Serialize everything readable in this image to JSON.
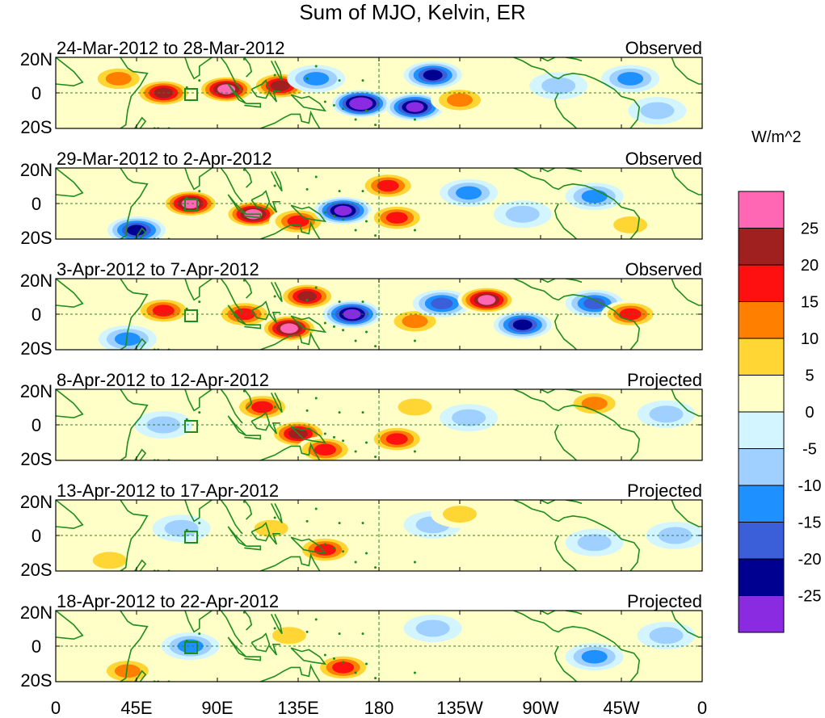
{
  "figure": {
    "title": "Sum of MJO, Kelvin, ER",
    "units": "W/m^2",
    "lon_tick_labels": [
      "0",
      "45E",
      "90E",
      "135E",
      "180",
      "135W",
      "90W",
      "45W",
      "0"
    ],
    "lat_tick_labels": [
      "20N",
      "0",
      "20S"
    ]
  },
  "panels": [
    {
      "date_range": "24-Mar-2012 to 28-Mar-2012",
      "status": "Observed"
    },
    {
      "date_range": "29-Mar-2012 to 2-Apr-2012",
      "status": "Observed"
    },
    {
      "date_range": "3-Apr-2012 to 7-Apr-2012",
      "status": "Observed"
    },
    {
      "date_range": "8-Apr-2012 to 12-Apr-2012",
      "status": "Projected"
    },
    {
      "date_range": "13-Apr-2012 to 17-Apr-2012",
      "status": "Projected"
    },
    {
      "date_range": "18-Apr-2012 to 22-Apr-2012",
      "status": "Projected"
    }
  ],
  "colorbar": {
    "tick_labels": [
      "25",
      "20",
      "15",
      "10",
      "5",
      "0",
      "-5",
      "-10",
      "-15",
      "-20",
      "-25"
    ],
    "colors": [
      "#ff66b3",
      "#a02020",
      "#ff1010",
      "#ff7f00",
      "#ffd633",
      "#ffffc8",
      "#d2f5ff",
      "#9fd0ff",
      "#1e90ff",
      "#3a5fd8",
      "#000090",
      "#8a2be2"
    ]
  },
  "chart_data": {
    "type": "heatmap",
    "title": "Sum of MJO, Kelvin, ER",
    "units": "W/m^2",
    "x_range": [
      0,
      360
    ],
    "y_range": [
      -20,
      20
    ],
    "x_ticks": [
      0,
      45,
      90,
      135,
      180,
      225,
      270,
      315,
      360
    ],
    "y_ticks": [
      20,
      0,
      -20
    ],
    "color_levels": [
      -25,
      -20,
      -15,
      -10,
      -5,
      0,
      5,
      10,
      15,
      20,
      25
    ],
    "panels": [
      {
        "label": "24-Mar-2012 to 28-Mar-2012",
        "kind": "Observed",
        "blobs": [
          {
            "lon": 60,
            "lat": 0,
            "value": 22
          },
          {
            "lon": 95,
            "lat": 2,
            "value": 30
          },
          {
            "lon": 125,
            "lat": 4,
            "value": 24
          },
          {
            "lon": 35,
            "lat": 8,
            "value": 12
          },
          {
            "lon": 145,
            "lat": 8,
            "value": -12
          },
          {
            "lon": 170,
            "lat": -6,
            "value": -32
          },
          {
            "lon": 200,
            "lat": -8,
            "value": -30
          },
          {
            "lon": 225,
            "lat": -4,
            "value": 14
          },
          {
            "lon": 210,
            "lat": 10,
            "value": -22
          },
          {
            "lon": 280,
            "lat": 4,
            "value": -8
          },
          {
            "lon": 320,
            "lat": 8,
            "value": -12
          },
          {
            "lon": 335,
            "lat": -10,
            "value": -10
          }
        ]
      },
      {
        "label": "29-Mar-2012 to 2-Apr-2012",
        "kind": "Observed",
        "blobs": [
          {
            "lon": 75,
            "lat": 0,
            "value": 28
          },
          {
            "lon": 110,
            "lat": -6,
            "value": 30
          },
          {
            "lon": 135,
            "lat": -10,
            "value": 20
          },
          {
            "lon": 160,
            "lat": -4,
            "value": -30
          },
          {
            "lon": 185,
            "lat": 10,
            "value": 20
          },
          {
            "lon": 190,
            "lat": -8,
            "value": 16
          },
          {
            "lon": 230,
            "lat": 6,
            "value": -14
          },
          {
            "lon": 260,
            "lat": -6,
            "value": -10
          },
          {
            "lon": 300,
            "lat": 4,
            "value": -12
          },
          {
            "lon": 45,
            "lat": -15,
            "value": -24
          },
          {
            "lon": 320,
            "lat": -12,
            "value": 10
          }
        ]
      },
      {
        "label": "3-Apr-2012 to 7-Apr-2012",
        "kind": "Observed",
        "blobs": [
          {
            "lon": 60,
            "lat": 2,
            "value": 18
          },
          {
            "lon": 105,
            "lat": 0,
            "value": 20
          },
          {
            "lon": 130,
            "lat": -8,
            "value": 30
          },
          {
            "lon": 140,
            "lat": 10,
            "value": 22
          },
          {
            "lon": 165,
            "lat": 0,
            "value": -26
          },
          {
            "lon": 200,
            "lat": -4,
            "value": 14
          },
          {
            "lon": 215,
            "lat": 6,
            "value": -18
          },
          {
            "lon": 240,
            "lat": 8,
            "value": 26
          },
          {
            "lon": 260,
            "lat": -6,
            "value": -22
          },
          {
            "lon": 300,
            "lat": 6,
            "value": -16
          },
          {
            "lon": 320,
            "lat": 0,
            "value": 18
          },
          {
            "lon": 40,
            "lat": -14,
            "value": -14
          }
        ]
      },
      {
        "label": "8-Apr-2012 to 12-Apr-2012",
        "kind": "Projected",
        "blobs": [
          {
            "lon": 115,
            "lat": 10,
            "value": 16
          },
          {
            "lon": 135,
            "lat": -5,
            "value": 22
          },
          {
            "lon": 150,
            "lat": -14,
            "value": 20
          },
          {
            "lon": 190,
            "lat": -8,
            "value": 18
          },
          {
            "lon": 60,
            "lat": 0,
            "value": -6
          },
          {
            "lon": 230,
            "lat": 4,
            "value": -8
          },
          {
            "lon": 300,
            "lat": 12,
            "value": 12
          },
          {
            "lon": 340,
            "lat": 6,
            "value": -10
          },
          {
            "lon": 200,
            "lat": 10,
            "value": 6
          }
        ]
      },
      {
        "label": "13-Apr-2012 to 17-Apr-2012",
        "kind": "Projected",
        "blobs": [
          {
            "lon": 150,
            "lat": -8,
            "value": 18
          },
          {
            "lon": 120,
            "lat": 4,
            "value": 8
          },
          {
            "lon": 30,
            "lat": -14,
            "value": 10
          },
          {
            "lon": 70,
            "lat": 4,
            "value": -6
          },
          {
            "lon": 210,
            "lat": 6,
            "value": -6
          },
          {
            "lon": 225,
            "lat": 12,
            "value": 10
          },
          {
            "lon": 300,
            "lat": -4,
            "value": -8
          },
          {
            "lon": 345,
            "lat": 0,
            "value": -6
          }
        ]
      },
      {
        "label": "18-Apr-2012 to 22-Apr-2012",
        "kind": "Projected",
        "blobs": [
          {
            "lon": 160,
            "lat": -12,
            "value": 16
          },
          {
            "lon": 130,
            "lat": 6,
            "value": 6
          },
          {
            "lon": 75,
            "lat": 0,
            "value": -14
          },
          {
            "lon": 40,
            "lat": -14,
            "value": 12
          },
          {
            "lon": 210,
            "lat": 10,
            "value": -6
          },
          {
            "lon": 300,
            "lat": -6,
            "value": -12
          },
          {
            "lon": 340,
            "lat": 6,
            "value": -6
          }
        ]
      }
    ]
  }
}
